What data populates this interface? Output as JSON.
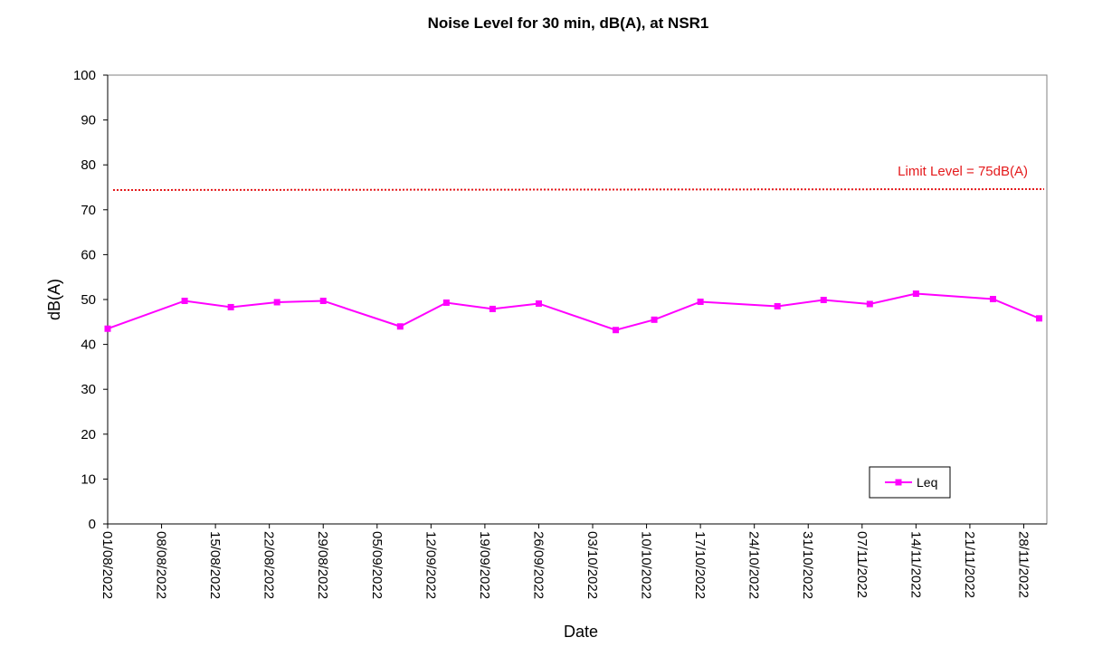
{
  "chart_data": {
    "type": "line",
    "title": "Noise Level for 30 min, dB(A), at NSR1",
    "xlabel": "Date",
    "ylabel": "dB(A)",
    "ylim": [
      0,
      100
    ],
    "yticks": [
      0,
      10,
      20,
      30,
      40,
      50,
      60,
      70,
      80,
      90,
      100
    ],
    "xlim": [
      "2022-08-01",
      "2022-12-01"
    ],
    "xtick_labels": [
      "01/08/2022",
      "08/08/2022",
      "15/08/2022",
      "22/08/2022",
      "29/08/2022",
      "05/09/2022",
      "12/09/2022",
      "19/09/2022",
      "26/09/2022",
      "03/10/2022",
      "10/10/2022",
      "17/10/2022",
      "24/10/2022",
      "31/10/2022",
      "07/11/2022",
      "14/11/2022",
      "21/11/2022",
      "28/11/2022"
    ],
    "grid": false,
    "legend": {
      "placement": "bottom-right",
      "entries": [
        "Leq"
      ]
    },
    "series": [
      {
        "name": "Leq",
        "color": "#ff00ff",
        "marker": "square",
        "x": [
          "2022-08-01",
          "2022-08-11",
          "2022-08-17",
          "2022-08-23",
          "2022-08-29",
          "2022-09-08",
          "2022-09-14",
          "2022-09-20",
          "2022-09-26",
          "2022-10-06",
          "2022-10-11",
          "2022-10-17",
          "2022-10-27",
          "2022-11-02",
          "2022-11-08",
          "2022-11-14",
          "2022-11-24",
          "2022-11-30"
        ],
        "values": [
          43.5,
          49.7,
          48.3,
          49.4,
          49.7,
          44.0,
          49.3,
          47.9,
          49.1,
          43.2,
          45.5,
          49.5,
          48.5,
          49.9,
          49.0,
          51.3,
          50.1,
          45.8
        ]
      }
    ],
    "limit_line": {
      "label": "Limit Level = 75dB(A)",
      "value": 75,
      "color": "#e41a1c"
    }
  }
}
